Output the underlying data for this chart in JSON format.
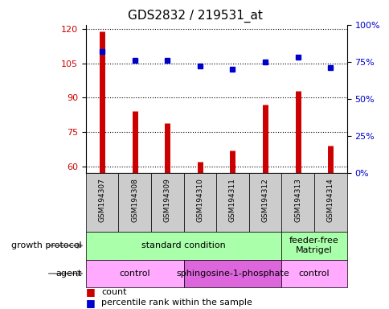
{
  "title": "GDS2832 / 219531_at",
  "samples": [
    "GSM194307",
    "GSM194308",
    "GSM194309",
    "GSM194310",
    "GSM194311",
    "GSM194312",
    "GSM194313",
    "GSM194314"
  ],
  "counts": [
    119,
    84,
    79,
    62,
    67,
    87,
    93,
    69
  ],
  "percentiles": [
    82,
    76,
    76,
    72,
    70,
    75,
    78,
    71
  ],
  "ylim_left": [
    57,
    122
  ],
  "yticks_left": [
    60,
    75,
    90,
    105,
    120
  ],
  "ylim_right": [
    0,
    100
  ],
  "yticks_right": [
    0,
    25,
    50,
    75,
    100
  ],
  "bar_color": "#cc0000",
  "dot_color": "#0000cc",
  "bar_bottom": 57,
  "gp_groups": [
    {
      "label": "standard condition",
      "start": 0,
      "end": 6,
      "color": "#aaffaa"
    },
    {
      "label": "feeder-free\nMatrigel",
      "start": 6,
      "end": 8,
      "color": "#aaffaa"
    }
  ],
  "agent_groups": [
    {
      "label": "control",
      "start": 0,
      "end": 3,
      "color": "#ffaaff"
    },
    {
      "label": "sphingosine-1-phosphate",
      "start": 3,
      "end": 6,
      "color": "#dd66dd"
    },
    {
      "label": "control",
      "start": 6,
      "end": 8,
      "color": "#ffaaff"
    }
  ],
  "label_growth_protocol": "growth protocol",
  "label_agent": "agent",
  "legend_count": "count",
  "legend_percentile": "percentile rank within the sample",
  "tick_label_color_left": "#cc0000",
  "tick_label_color_right": "#0000cc",
  "sample_bg_color": "#cccccc",
  "fig_width": 4.85,
  "fig_height": 3.84,
  "dpi": 100
}
